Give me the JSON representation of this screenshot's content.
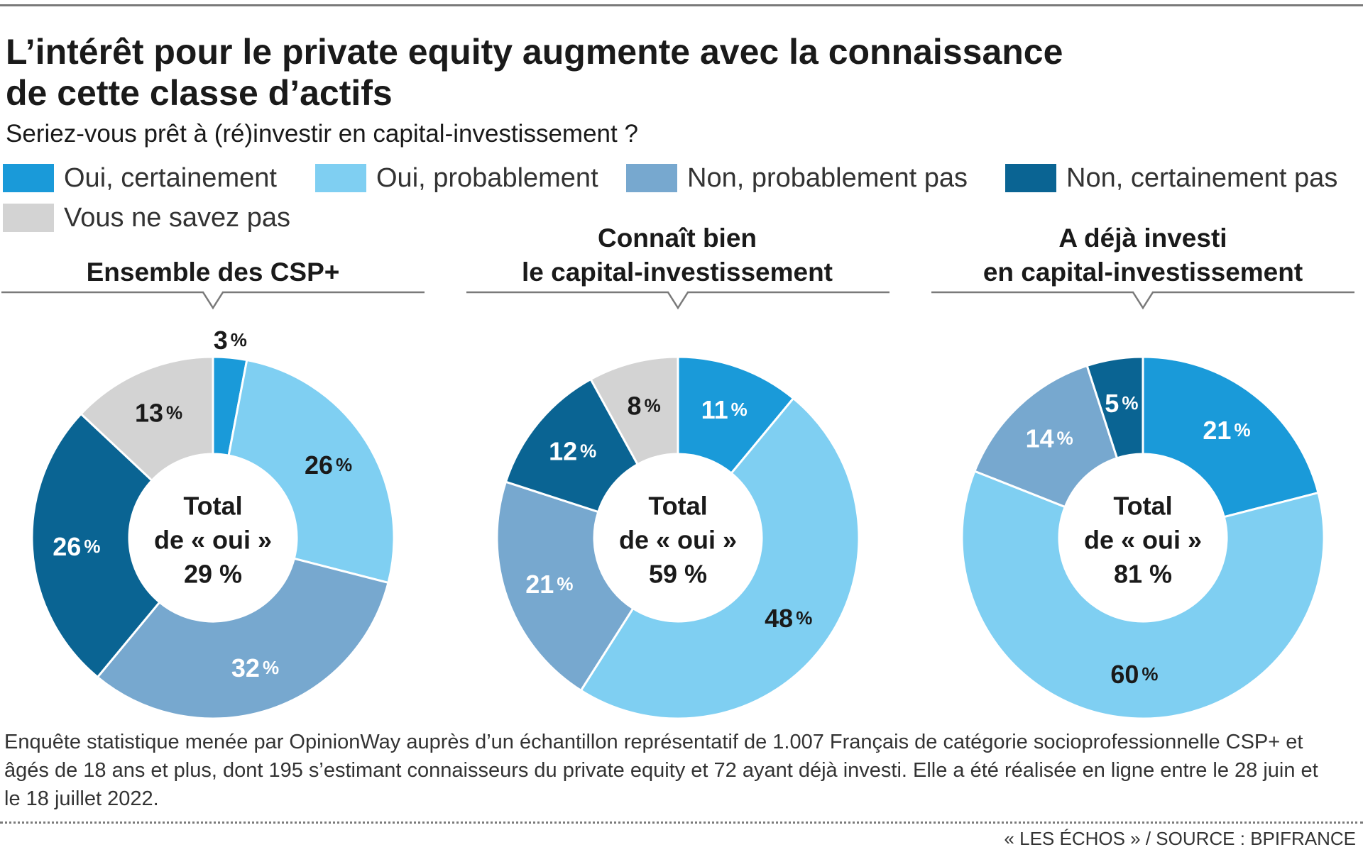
{
  "title": "L’intérêt pour le private equity augmente avec la connaissance\nde cette classe d’actifs",
  "subtitle": "Seriez-vous prêt à (ré)investir en capital-investissement ?",
  "legend": [
    {
      "label": "Oui, certainement",
      "color": "#1a9ad9"
    },
    {
      "label": "Oui, probablement",
      "color": "#7fcff2"
    },
    {
      "label": "Non, probablement pas",
      "color": "#77a8cf"
    },
    {
      "label": "Non, certainement pas",
      "color": "#0a6493"
    },
    {
      "label": "Vous ne savez pas",
      "color": "#d3d3d3"
    }
  ],
  "colors": {
    "label_dark": "#1a1a1a",
    "label_light": "#ffffff",
    "rule": "#7a7a7a"
  },
  "chart_data": [
    {
      "type": "pie",
      "title": "Ensemble des CSP+",
      "center_label": [
        "Total",
        "de « oui »",
        "29 %"
      ],
      "percent_suffix": "%",
      "slices": [
        {
          "name": "Oui, certainement",
          "value": 3
        },
        {
          "name": "Oui, probablement",
          "value": 26
        },
        {
          "name": "Non, probablement pas",
          "value": 32
        },
        {
          "name": "Non, certainement pas",
          "value": 26
        },
        {
          "name": "Vous ne savez pas",
          "value": 13
        }
      ]
    },
    {
      "type": "pie",
      "title": "Connaît bien\nle capital-investissement",
      "center_label": [
        "Total",
        "de « oui »",
        "59 %"
      ],
      "percent_suffix": "%",
      "slices": [
        {
          "name": "Oui, certainement",
          "value": 11
        },
        {
          "name": "Oui, probablement",
          "value": 48
        },
        {
          "name": "Non, probablement pas",
          "value": 21
        },
        {
          "name": "Non, certainement pas",
          "value": 12
        },
        {
          "name": "Vous ne savez pas",
          "value": 8
        }
      ]
    },
    {
      "type": "pie",
      "title": "A déjà investi\nen capital-investissement",
      "center_label": [
        "Total",
        "de « oui »",
        "81 %"
      ],
      "percent_suffix": "%",
      "slices": [
        {
          "name": "Oui, certainement",
          "value": 21
        },
        {
          "name": "Oui, probablement",
          "value": 60
        },
        {
          "name": "Non, probablement pas",
          "value": 14
        },
        {
          "name": "Non, certainement pas",
          "value": 5
        }
      ]
    }
  ],
  "footnote": "Enquête statistique menée par OpinionWay auprès d’un échantillon représentatif de 1.007 Français de catégorie socioprofessionnelle CSP+ et âgés de 18 ans et plus, dont 195 s’estimant connaisseurs du private equity et 72 ayant déjà investi. Elle a été réalisée en ligne entre le 28 juin et le 18 juillet 2022.",
  "source": "« LES ÉCHOS » / SOURCE : BPIFRANCE"
}
